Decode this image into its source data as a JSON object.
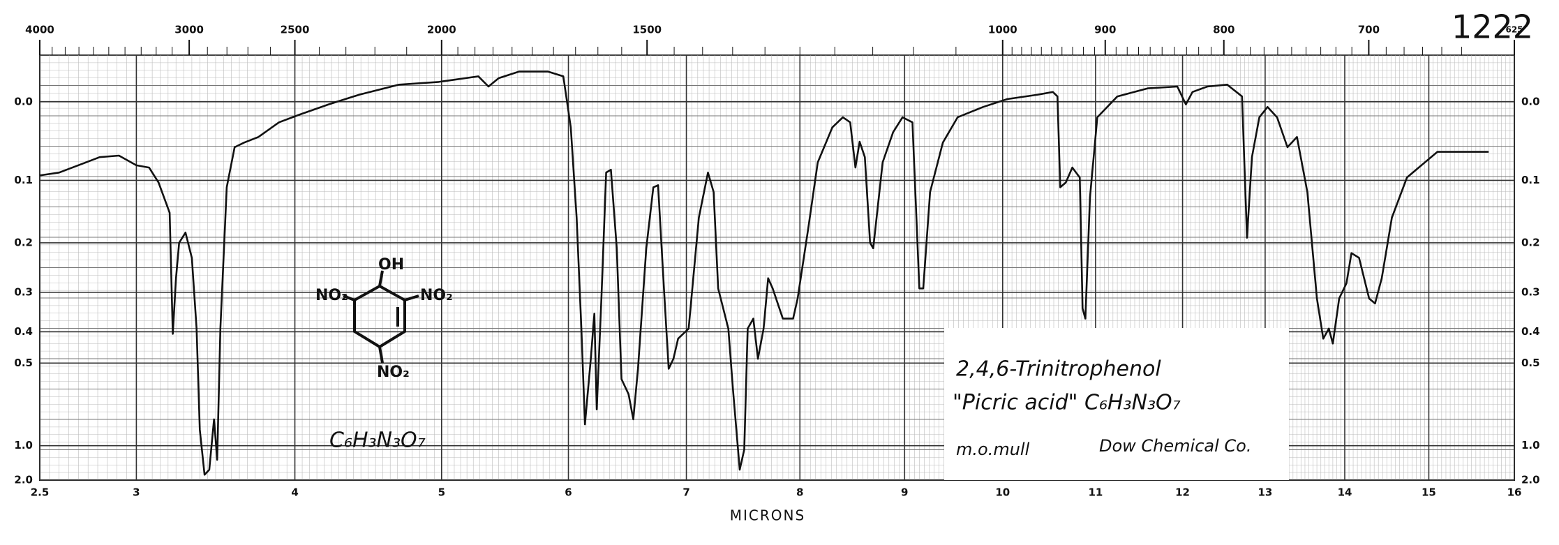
{
  "chart_data": {
    "type": "line",
    "x_label": "MICRONS",
    "scale": "absorbance",
    "grid": true,
    "color": "#111111",
    "xlim": [
      2.5,
      16
    ],
    "xticks": [
      {
        "value": 2.5,
        "label": "2.5"
      },
      3,
      4,
      5,
      6,
      7,
      8,
      9,
      10,
      11,
      12,
      13,
      14,
      15,
      16
    ],
    "x2ticks": [
      4000,
      3000,
      2500,
      2000,
      1500,
      1000,
      900,
      800,
      700,
      625
    ],
    "ylim": [
      -0.05,
      2.0
    ],
    "yticks": [
      {
        "value": 0,
        "label": "0.0"
      },
      0.1,
      0.2,
      0.3,
      0.4,
      0.5,
      {
        "value": 1,
        "label": "1.0"
      },
      {
        "value": 2,
        "label": "2.0"
      }
    ],
    "x": [
      2.5,
      2.6,
      2.81,
      2.91,
      3.0,
      3.08,
      3.14,
      3.21,
      3.23,
      3.25,
      3.27,
      3.31,
      3.35,
      3.38,
      3.4,
      3.43,
      3.46,
      3.49,
      3.51,
      3.53,
      3.57,
      3.62,
      3.68,
      3.77,
      3.9,
      4.03,
      4.23,
      4.44,
      4.71,
      4.98,
      5.29,
      5.37,
      5.45,
      5.61,
      5.84,
      5.96,
      6.02,
      6.07,
      6.11,
      6.14,
      6.19,
      6.22,
      6.24,
      6.28,
      6.32,
      6.36,
      6.41,
      6.45,
      6.51,
      6.55,
      6.59,
      6.66,
      6.72,
      6.76,
      6.81,
      6.85,
      6.89,
      6.93,
      7.02,
      7.11,
      7.19,
      7.24,
      7.28,
      7.37,
      7.41,
      7.47,
      7.51,
      7.54,
      7.59,
      7.63,
      7.68,
      7.72,
      7.76,
      7.85,
      7.94,
      7.98,
      8.08,
      8.17,
      8.31,
      8.41,
      8.48,
      8.53,
      8.57,
      8.62,
      8.67,
      8.7,
      8.79,
      8.89,
      8.98,
      9.08,
      9.15,
      9.19,
      9.26,
      9.39,
      9.54,
      9.8,
      10.05,
      10.38,
      10.54,
      10.59,
      10.62,
      10.68,
      10.75,
      10.83,
      10.86,
      10.89,
      10.94,
      11.02,
      11.25,
      11.6,
      11.94,
      12.04,
      12.12,
      12.3,
      12.54,
      12.72,
      12.78,
      12.84,
      12.93,
      13.03,
      13.15,
      13.28,
      13.4,
      13.53,
      13.65,
      13.73,
      13.8,
      13.85,
      13.93,
      14.02,
      14.08,
      14.17,
      14.29,
      14.36,
      14.44,
      14.56,
      14.74,
      15.1,
      15.7
    ],
    "values": [
      0.093,
      0.089,
      0.068,
      0.066,
      0.079,
      0.082,
      0.103,
      0.149,
      0.406,
      0.269,
      0.2,
      0.182,
      0.228,
      0.391,
      0.847,
      1.62,
      1.43,
      0.772,
      1.2,
      0.391,
      0.11,
      0.055,
      0.049,
      0.042,
      0.024,
      0.015,
      0.003,
      -0.008,
      -0.019,
      -0.022,
      -0.028,
      -0.017,
      -0.026,
      -0.033,
      -0.033,
      -0.028,
      0.03,
      0.157,
      0.391,
      0.807,
      0.485,
      0.351,
      0.71,
      0.314,
      0.089,
      0.085,
      0.21,
      0.562,
      0.629,
      0.772,
      0.521,
      0.21,
      0.11,
      0.107,
      0.291,
      0.521,
      0.485,
      0.42,
      0.391,
      0.157,
      0.089,
      0.117,
      0.291,
      0.391,
      0.606,
      1.43,
      1.046,
      0.391,
      0.364,
      0.485,
      0.391,
      0.269,
      0.291,
      0.364,
      0.364,
      0.314,
      0.174,
      0.075,
      0.03,
      0.018,
      0.024,
      0.082,
      0.048,
      0.068,
      0.2,
      0.21,
      0.075,
      0.036,
      0.018,
      0.024,
      0.291,
      0.291,
      0.117,
      0.049,
      0.018,
      0.006,
      -0.003,
      -0.008,
      -0.011,
      -0.006,
      0.11,
      0.103,
      0.082,
      0.096,
      0.338,
      0.364,
      0.125,
      0.018,
      -0.006,
      -0.015,
      -0.017,
      0.003,
      -0.011,
      -0.017,
      -0.019,
      -0.006,
      0.191,
      0.068,
      0.018,
      0.006,
      0.018,
      0.055,
      0.042,
      0.117,
      0.314,
      0.42,
      0.391,
      0.435,
      0.314,
      0.28,
      0.219,
      0.228,
      0.314,
      0.326,
      0.269,
      0.157,
      0.096,
      0.061,
      0.061
    ],
    "annotations": [
      "1222",
      "625",
      "2,4,6-Trinitrophenol",
      "\"Picric acid\"  C₆H₃N₃O₇",
      "m.o.mull",
      "Dow Chemical Co.",
      "C₆H₃N₃O₇",
      "OH",
      "NO₂",
      "NO₂",
      "NO₂"
    ]
  }
}
